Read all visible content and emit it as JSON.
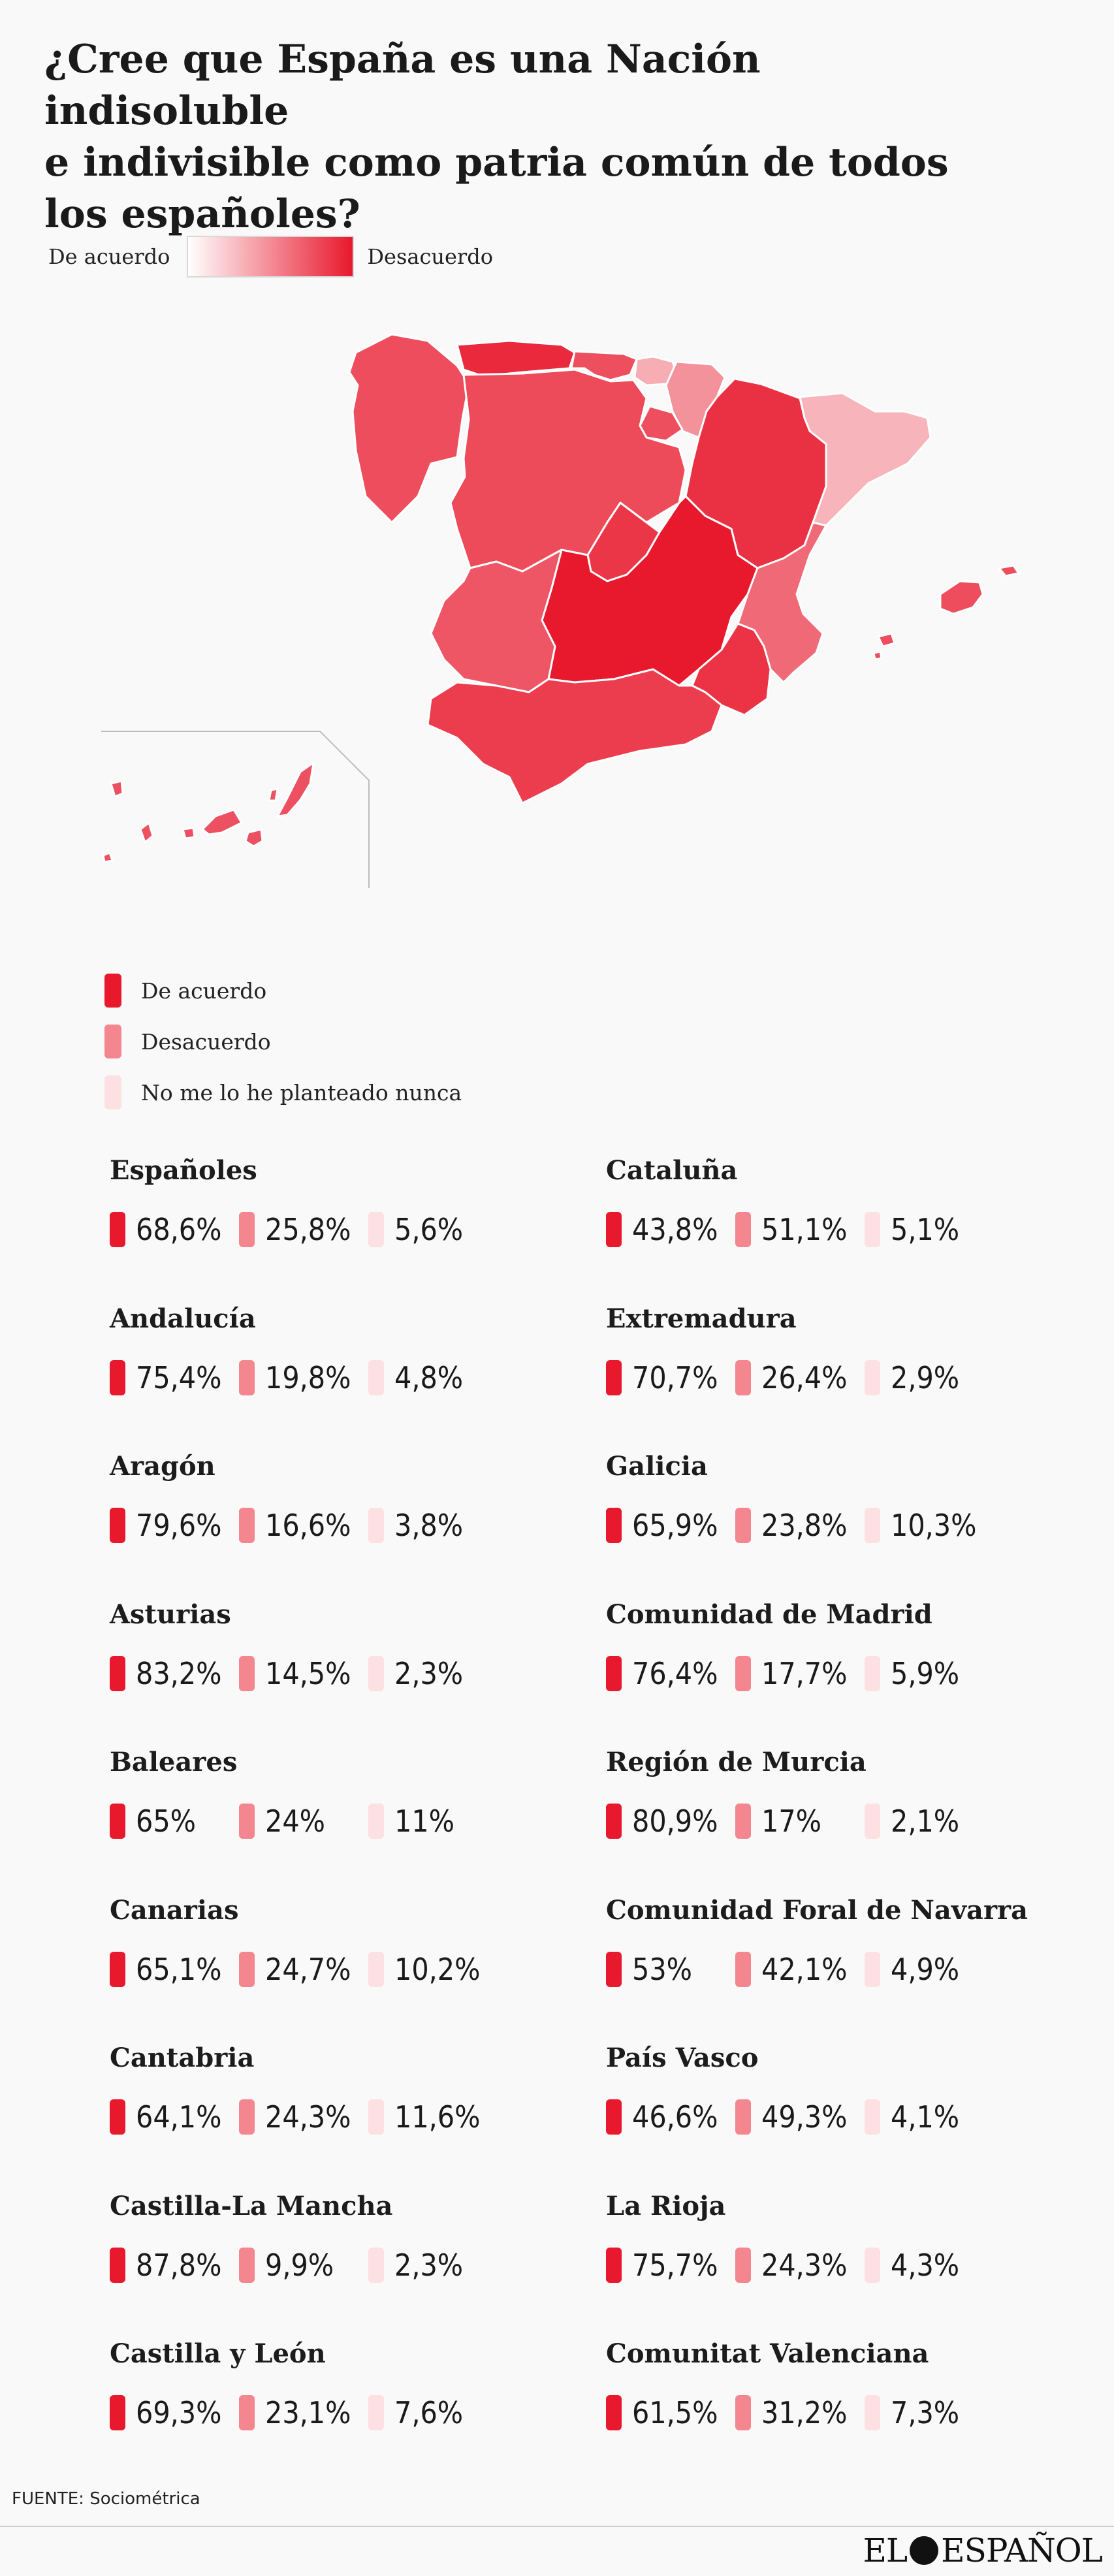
{
  "title_lines": [
    "¿Cree que España es una Nación indisoluble",
    "e indivisible como patria común de todos",
    "los españoles?"
  ],
  "scale": {
    "left_label": "De acuerdo",
    "right_label": "Desacuerdo"
  },
  "colors": {
    "agree": "#e8182d",
    "disagree": "#f4868f",
    "never": "#fde0e2",
    "scale_high": "#e8182d",
    "scale_low": "#ffffff"
  },
  "legend": [
    {
      "label": "De acuerdo",
      "color": "#e8182d"
    },
    {
      "label": "Desacuerdo",
      "color": "#f4868f"
    },
    {
      "label": "No me lo he planteado nunca",
      "color": "#fde0e2"
    }
  ],
  "chart_data": {
    "type": "table",
    "title": "¿Cree que España es una Nación indisoluble e indivisible como patria común de todos los españoles?",
    "columns": [
      "De acuerdo",
      "Desacuerdo",
      "No me lo he planteado nunca"
    ],
    "rows": [
      {
        "name": "Españoles",
        "values": [
          "68,6%",
          "25,8%",
          "5,6%"
        ]
      },
      {
        "name": "Cataluña",
        "values": [
          "43,8%",
          "51,1%",
          "5,1%"
        ]
      },
      {
        "name": "Andalucía",
        "values": [
          "75,4%",
          "19,8%",
          "4,8%"
        ]
      },
      {
        "name": "Extremadura",
        "values": [
          "70,7%",
          "26,4%",
          "2,9%"
        ]
      },
      {
        "name": "Aragón",
        "values": [
          "79,6%",
          "16,6%",
          "3,8%"
        ]
      },
      {
        "name": "Galicia",
        "values": [
          "65,9%",
          "23,8%",
          "10,3%"
        ]
      },
      {
        "name": "Asturias",
        "values": [
          "83,2%",
          "14,5%",
          "2,3%"
        ]
      },
      {
        "name": "Comunidad de Madrid",
        "values": [
          "76,4%",
          "17,7%",
          "5,9%"
        ]
      },
      {
        "name": "Baleares",
        "values": [
          "65%",
          "24%",
          "11%"
        ]
      },
      {
        "name": "Región de Murcia",
        "values": [
          "80,9%",
          "17%",
          "2,1%"
        ]
      },
      {
        "name": "Canarias",
        "values": [
          "65,1%",
          "24,7%",
          "10,2%"
        ]
      },
      {
        "name": "Comunidad Foral de Navarra",
        "values": [
          "53%",
          "42,1%",
          "4,9%"
        ]
      },
      {
        "name": "Cantabria",
        "values": [
          "64,1%",
          "24,3%",
          "11,6%"
        ]
      },
      {
        "name": "País Vasco",
        "values": [
          "46,6%",
          "49,3%",
          "4,1%"
        ]
      },
      {
        "name": "Castilla-La Mancha",
        "values": [
          "87,8%",
          "9,9%",
          "2,3%"
        ]
      },
      {
        "name": "La Rioja",
        "values": [
          "75,7%",
          "24,3%",
          "4,3%"
        ]
      },
      {
        "name": "Castilla y León",
        "values": [
          "69,3%",
          "23,1%",
          "7,6%"
        ]
      },
      {
        "name": "Comunitat Valenciana",
        "values": [
          "61,5%",
          "31,2%",
          "7,3%"
        ]
      }
    ],
    "map": {
      "type": "choropleth",
      "metric": "Desacuerdo",
      "regions": [
        {
          "name": "Galicia",
          "value": 23.8
        },
        {
          "name": "Asturias",
          "value": 14.5
        },
        {
          "name": "Cantabria",
          "value": 24.3
        },
        {
          "name": "País Vasco",
          "value": 49.3
        },
        {
          "name": "Comunidad Foral de Navarra",
          "value": 42.1
        },
        {
          "name": "La Rioja",
          "value": 24.3
        },
        {
          "name": "Aragón",
          "value": 16.6
        },
        {
          "name": "Cataluña",
          "value": 51.1
        },
        {
          "name": "Castilla y León",
          "value": 23.1
        },
        {
          "name": "Comunidad de Madrid",
          "value": 17.7
        },
        {
          "name": "Castilla-La Mancha",
          "value": 9.9
        },
        {
          "name": "Extremadura",
          "value": 26.4
        },
        {
          "name": "Comunitat Valenciana",
          "value": 31.2
        },
        {
          "name": "Región de Murcia",
          "value": 17
        },
        {
          "name": "Andalucía",
          "value": 19.8
        },
        {
          "name": "Baleares",
          "value": 24
        },
        {
          "name": "Canarias",
          "value": 24.7
        }
      ]
    }
  },
  "footer": {
    "source": "FUENTE: Sociométrica",
    "brand_left": "EL",
    "brand_right": "ESPAÑOL"
  }
}
